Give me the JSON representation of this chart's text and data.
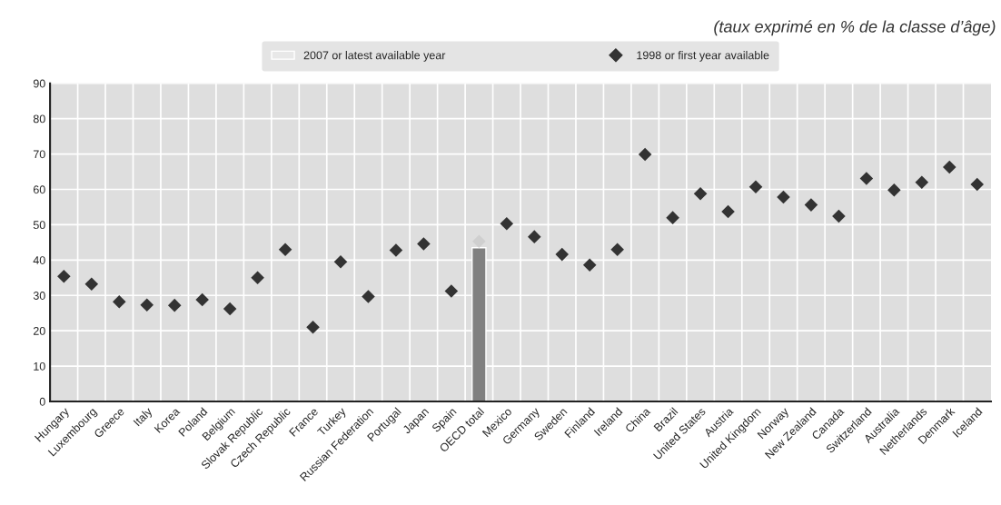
{
  "chart_data": {
    "type": "bar",
    "annotations": [
      "(taux exprimé en % de la classe d’âge)"
    ],
    "categories": [
      "Hungary",
      "Luxembourg",
      "Greece",
      "Italy",
      "Korea",
      "Poland",
      "Belgium",
      "Slovak Republic",
      "Czech Republic",
      "France",
      "Turkey",
      "Russian Federation",
      "Portugal",
      "Japan",
      "Spain",
      "OECD total",
      "Mexico",
      "Germany",
      "Sweden",
      "Finland",
      "Ireland",
      "China",
      "Brazil",
      "United States",
      "Austria",
      "United Kingdom",
      "Norway",
      "New Zealand",
      "Canada",
      "Switzerland",
      "Australia",
      "Netherlands",
      "Denmark",
      "Iceland"
    ],
    "series": [
      {
        "name": "2007 or latest available year",
        "type": "bar",
        "color": "#e8e8e8",
        "colors": [
          "#e8e8e8",
          "#e8e8e8",
          "#e8e8e8",
          "#e8e8e8",
          "#e8e8e8",
          "#e8e8e8",
          "#e8e8e8",
          "#e8e8e8",
          "#e8e8e8",
          "#e8e8e8",
          "#e8e8e8",
          "#e8e8e8",
          "#e8e8e8",
          "#e8e8e8",
          "#e8e8e8",
          "#808080",
          "#e8e8e8",
          "#e8e8e8",
          "#e8e8e8",
          "#e8e8e8",
          "#e8e8e8",
          "#e8e8e8",
          "#e8e8e8",
          "#e8e8e8",
          "#e8e8e8",
          "#e8e8e8",
          "#e8e8e8",
          "#e8e8e8",
          "#e8e8e8",
          "#e8e8e8",
          "#e8e8e8",
          "#e8e8e8",
          "#e8e8e8",
          "#e8e8e8"
        ],
        "values": [
          null,
          null,
          null,
          null,
          null,
          null,
          null,
          null,
          null,
          null,
          null,
          null,
          null,
          null,
          null,
          43.5,
          null,
          null,
          null,
          null,
          null,
          null,
          null,
          null,
          null,
          null,
          null,
          null,
          null,
          null,
          null,
          null,
          null,
          null
        ]
      },
      {
        "name": "1998 or first year available",
        "type": "scatter",
        "marker": "diamond",
        "color": "#333333",
        "colors": [
          "#333333",
          "#333333",
          "#333333",
          "#333333",
          "#333333",
          "#333333",
          "#333333",
          "#333333",
          "#333333",
          "#333333",
          "#333333",
          "#333333",
          "#333333",
          "#333333",
          "#333333",
          "#cfcfcf",
          "#333333",
          "#333333",
          "#333333",
          "#333333",
          "#333333",
          "#333333",
          "#333333",
          "#333333",
          "#333333",
          "#333333",
          "#333333",
          "#333333",
          "#333333",
          "#333333",
          "#333333",
          "#333333",
          "#333333",
          "#333333"
        ],
        "values": [
          35.4,
          33.2,
          28.2,
          27.3,
          27.2,
          28.8,
          26.2,
          35.0,
          43.0,
          21.0,
          39.5,
          29.7,
          42.8,
          44.6,
          31.2,
          45.3,
          50.3,
          46.6,
          41.6,
          38.6,
          43.0,
          69.9,
          52.0,
          58.8,
          53.7,
          60.7,
          57.8,
          55.6,
          52.4,
          63.1,
          59.8,
          62.0,
          66.3,
          61.4
        ]
      }
    ],
    "ylim": [
      0,
      90
    ],
    "yticks": [
      0,
      10,
      20,
      30,
      40,
      50,
      60,
      70,
      80,
      90
    ],
    "grid": true,
    "legend": "top"
  }
}
